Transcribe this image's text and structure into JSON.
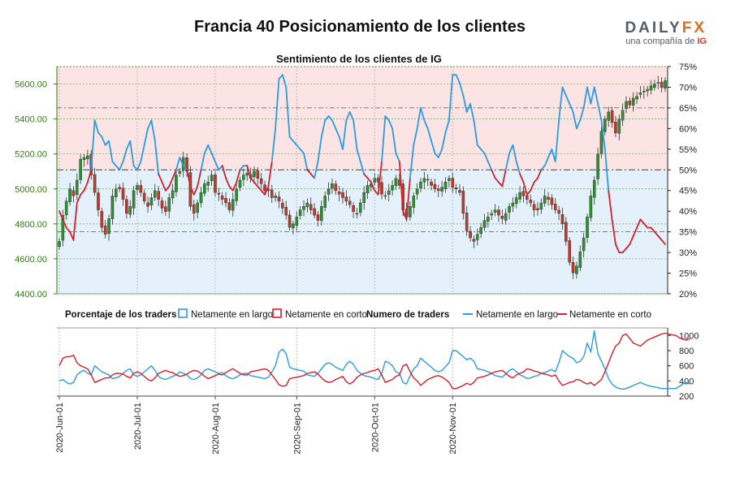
{
  "title": "Francia 40 Posicionamiento de los clientes",
  "brand": {
    "name_a": "DAILY",
    "name_b": "FX",
    "sub": "una compañía de ",
    "sub_ig": "IG"
  },
  "chart_data": [
    {
      "type": "candlestick+line",
      "title": "Sentimiento de los clientes de IG",
      "y_left": {
        "min": 4400,
        "max": 5700,
        "ticks": [
          "4400.00",
          "4600.00",
          "4800.00",
          "5000.00",
          "5200.00",
          "5400.00",
          "5600.00"
        ]
      },
      "y_right": {
        "min": 20,
        "max": 75,
        "ticks": [
          "20%",
          "25%",
          "30%",
          "35%",
          "40%",
          "45%",
          "50%",
          "55%",
          "60%",
          "65%",
          "70%",
          "75%"
        ]
      },
      "reference_lines_pct": [
        35,
        50,
        65
      ],
      "close_series": [
        4700,
        4850,
        4930,
        5000,
        4960,
        5050,
        5170,
        5180,
        5190,
        5080,
        4980,
        4880,
        4780,
        4740,
        4830,
        4960,
        5000,
        5000,
        4940,
        4860,
        4900,
        4990,
        5020,
        4980,
        4930,
        4900,
        4950,
        4990,
        4940,
        4890,
        4870,
        4950,
        4990,
        5080,
        5100,
        5180,
        5100,
        4900,
        4860,
        4920,
        4980,
        5030,
        5040,
        5080,
        4980,
        4970,
        4940,
        4920,
        4880,
        4940,
        5000,
        5050,
        5080,
        5090,
        5060,
        5100,
        5060,
        5030,
        4990,
        4990,
        4950,
        4960,
        4930,
        4890,
        4850,
        4780,
        4800,
        4840,
        4880,
        4900,
        4920,
        4880,
        4850,
        4820,
        4900,
        4960,
        5000,
        5030,
        4990,
        4970,
        4950,
        4930,
        4910,
        4870,
        4860,
        4920,
        4980,
        5020,
        5030,
        5060,
        5040,
        4970,
        4960,
        4990,
        5020,
        5060,
        5020,
        4880,
        4840,
        4900,
        4960,
        5000,
        5040,
        5060,
        5050,
        5020,
        5000,
        4990,
        5010,
        5040,
        5060,
        5010,
        5000,
        4980,
        4860,
        4760,
        4720,
        4700,
        4740,
        4780,
        4820,
        4840,
        4860,
        4880,
        4850,
        4830,
        4860,
        4900,
        4920,
        4950,
        4980,
        4960,
        4940,
        4920,
        4880,
        4880,
        4920,
        4960,
        4940,
        4910,
        4880,
        4860,
        4800,
        4700,
        4580,
        4520,
        4560,
        4640,
        4720,
        4840,
        4960,
        5050,
        5200,
        5330,
        5400,
        5440,
        5380,
        5320,
        5400,
        5450,
        5500,
        5480,
        5520,
        5530,
        5550,
        5560,
        5570,
        5590,
        5600,
        5610,
        5580,
        5620
      ],
      "net_long_pct": [
        40,
        38,
        36,
        35,
        33,
        42,
        44,
        45,
        47,
        50,
        62,
        59,
        58,
        56,
        57,
        52,
        51,
        50,
        52,
        55,
        57,
        51,
        50,
        52,
        56,
        60,
        62,
        57,
        49,
        47,
        45,
        46,
        48,
        50,
        53,
        51,
        50,
        46,
        44,
        46,
        50,
        54,
        56,
        54,
        52,
        50,
        51,
        48,
        46,
        45,
        47,
        50,
        51,
        51,
        48,
        47,
        46,
        45,
        44,
        46,
        52,
        60,
        72,
        73,
        70,
        58,
        57,
        56,
        55,
        54,
        50,
        49,
        48,
        52,
        58,
        62,
        63,
        62,
        60,
        58,
        55,
        62,
        64,
        62,
        55,
        52,
        49,
        48,
        47,
        45,
        44,
        52,
        63,
        62,
        60,
        54,
        52,
        40,
        38,
        48,
        56,
        60,
        65,
        62,
        60,
        57,
        54,
        53,
        55,
        59,
        62,
        73,
        73,
        71,
        68,
        64,
        66,
        62,
        56,
        55,
        54,
        52,
        50,
        48,
        47,
        46,
        50,
        54,
        56,
        52,
        49,
        47,
        44,
        45,
        47,
        48,
        50,
        51,
        53,
        55,
        52,
        62,
        70,
        68,
        66,
        64,
        60,
        62,
        65,
        70,
        66,
        70,
        66,
        62,
        55,
        45,
        38,
        32,
        30,
        30,
        31,
        32,
        34,
        36,
        38,
        37,
        36,
        36,
        35,
        34,
        33,
        32,
        31,
        30,
        29,
        29,
        27,
        27,
        29
      ],
      "series": [
        {
          "name": "Netamente en largo",
          "color": "#2c9be0"
        },
        {
          "name": "Netamente en corto",
          "color": "#d3212d"
        }
      ]
    },
    {
      "type": "line",
      "title": "Numero de traders",
      "y_right": {
        "min": 200,
        "max": 1100,
        "ticks": [
          "200",
          "400",
          "600",
          "800",
          "1000"
        ]
      },
      "x_ticks": [
        "2020-Jun-01",
        "2020-Jul-01",
        "2020-Aug-01",
        "2020-Sep-01",
        "2020-Oct-01",
        "2020-Nov-01"
      ],
      "series": [
        {
          "name": "Netamente en largo",
          "color": "#2c9be0",
          "values": [
            400,
            420,
            380,
            360,
            380,
            480,
            520,
            540,
            500,
            480,
            600,
            560,
            520,
            500,
            480,
            430,
            440,
            460,
            500,
            540,
            560,
            480,
            460,
            480,
            520,
            560,
            600,
            540,
            460,
            430,
            420,
            440,
            460,
            480,
            520,
            500,
            480,
            430,
            420,
            440,
            480,
            540,
            560,
            540,
            520,
            500,
            510,
            470,
            440,
            430,
            450,
            480,
            500,
            500,
            470,
            460,
            450,
            440,
            430,
            450,
            520,
            600,
            780,
            820,
            760,
            580,
            560,
            550,
            540,
            530,
            480,
            470,
            460,
            500,
            560,
            620,
            640,
            620,
            580,
            560,
            540,
            620,
            660,
            620,
            540,
            500,
            470,
            460,
            450,
            430,
            420,
            500,
            660,
            640,
            600,
            520,
            500,
            380,
            360,
            470,
            560,
            600,
            700,
            660,
            620,
            580,
            540,
            520,
            540,
            590,
            640,
            800,
            800,
            760,
            720,
            680,
            700,
            660,
            560,
            550,
            540,
            520,
            500,
            470,
            460,
            450,
            490,
            540,
            560,
            520,
            480,
            460,
            430,
            440,
            460,
            470,
            500,
            510,
            530,
            550,
            520,
            640,
            800,
            760,
            720,
            700,
            640,
            660,
            720,
            900,
            780,
            1060,
            760,
            660,
            560,
            430,
            360,
            320,
            300,
            290,
            300,
            320,
            340,
            360,
            380,
            360,
            340,
            330,
            320,
            310,
            300,
            300,
            300,
            300,
            300,
            330,
            360,
            380,
            360
          ]
        },
        {
          "name": "Netamente en corto",
          "color": "#d3212d",
          "values": [
            600,
            700,
            720,
            720,
            740,
            640,
            600,
            580,
            560,
            480,
            380,
            400,
            420,
            440,
            440,
            480,
            500,
            500,
            490,
            460,
            440,
            500,
            520,
            500,
            460,
            420,
            400,
            440,
            500,
            520,
            540,
            520,
            510,
            480,
            460,
            470,
            490,
            520,
            540,
            530,
            500,
            460,
            430,
            450,
            470,
            490,
            480,
            510,
            540,
            560,
            530,
            500,
            480,
            480,
            520,
            530,
            540,
            550,
            560,
            540,
            480,
            420,
            350,
            330,
            340,
            430,
            440,
            450,
            460,
            470,
            500,
            510,
            520,
            490,
            440,
            400,
            380,
            390,
            420,
            440,
            460,
            390,
            360,
            390,
            450,
            480,
            500,
            510,
            530,
            540,
            560,
            480,
            380,
            400,
            420,
            460,
            480,
            600,
            620,
            520,
            440,
            400,
            340,
            380,
            420,
            440,
            460,
            470,
            450,
            420,
            380,
            300,
            300,
            320,
            340,
            370,
            350,
            380,
            440,
            450,
            460,
            480,
            500,
            520,
            530,
            540,
            500,
            460,
            440,
            480,
            500,
            520,
            560,
            550,
            530,
            520,
            500,
            490,
            480,
            460,
            480,
            400,
            340,
            360,
            380,
            390,
            420,
            410,
            380,
            360,
            380,
            340,
            380,
            420,
            520,
            640,
            760,
            860,
            900,
            1000,
            1020,
            960,
            900,
            880,
            860,
            900,
            940,
            960,
            980,
            1000,
            1020,
            1030,
            1020,
            1010,
            1000,
            970,
            950,
            940,
            960
          ]
        }
      ]
    }
  ],
  "legend": {
    "pct_head": "Porcentaje de los traders",
    "num_head": "Numero de traders",
    "long": "Netamente en largo",
    "short": "Netamente en corto"
  }
}
